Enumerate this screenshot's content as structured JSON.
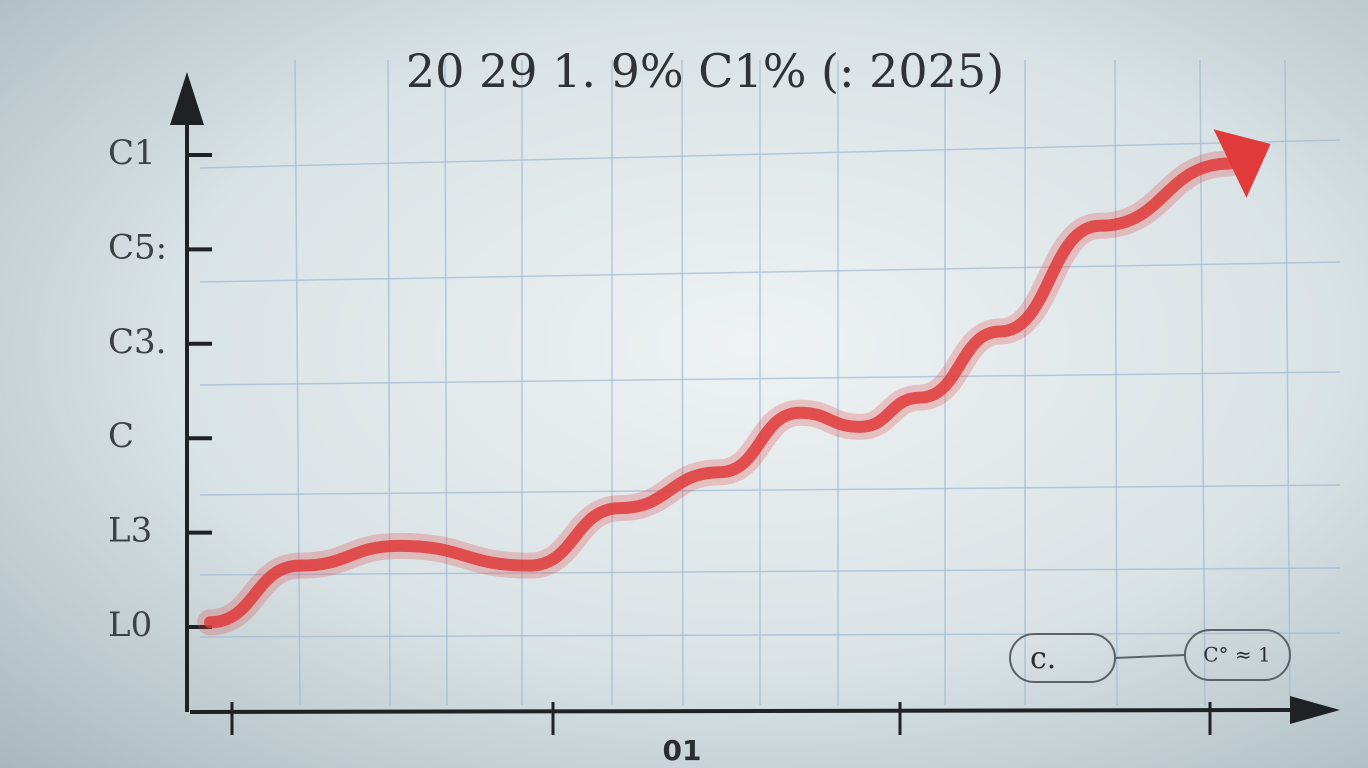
{
  "chart_data": {
    "type": "line",
    "title": "20 29 1. 9% C1% (: 2025)",
    "x_label": "01",
    "xlim": [
      0,
      11.35
    ],
    "ylim": [
      -0.9,
      5.9
    ],
    "yticks": [
      {
        "value": 0,
        "label": "L0"
      },
      {
        "value": 1,
        "label": "L3"
      },
      {
        "value": 2,
        "label": "C"
      },
      {
        "value": 3,
        "label": "C3."
      },
      {
        "value": 4,
        "label": "C5:"
      },
      {
        "value": 5,
        "label": "C1"
      }
    ],
    "series": [
      {
        "color": "#e03a3a",
        "x": [
          0.15,
          1.05,
          2.05,
          3.35,
          4.25,
          5.25,
          6.05,
          6.65,
          7.25,
          8.05,
          9.05,
          10.35
        ],
        "values": [
          0.05,
          0.65,
          0.86,
          0.65,
          1.26,
          1.64,
          2.27,
          2.12,
          2.43,
          3.13,
          4.25,
          4.91
        ]
      }
    ],
    "annotations": [
      "c.",
      "C° ≈ 1"
    ]
  }
}
